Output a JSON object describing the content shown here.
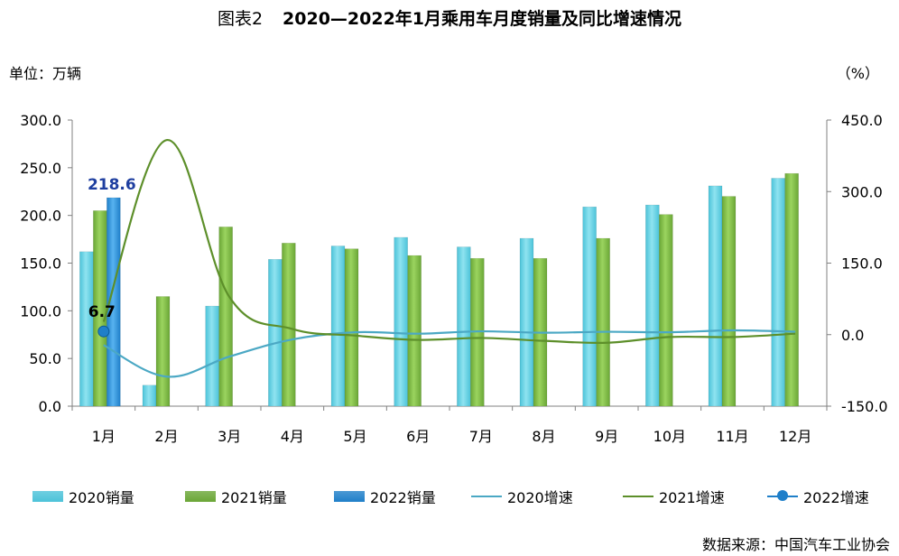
{
  "header": {
    "figure_label": "图表2",
    "title": "2020—2022年1月乘用车月度销量及同比增速情况"
  },
  "units": {
    "left": "单位：万辆",
    "right": "（%）"
  },
  "source": "数据来源：中国汽车工业协会",
  "colors": {
    "bar2020": "#4cc3d9",
    "bar2021": "#6aa636",
    "bar2022": "#1f7fc9",
    "line2020": "#4ba8c4",
    "line2021": "#5d8f2a",
    "line2022": "#1f7fc9"
  },
  "chart_data": {
    "type": "bar",
    "categories": [
      "1月",
      "2月",
      "3月",
      "4月",
      "5月",
      "6月",
      "7月",
      "8月",
      "9月",
      "10月",
      "11月",
      "12月"
    ],
    "ylim": [
      0,
      300
    ],
    "yticks": [
      "0.0",
      "50.0",
      "100.0",
      "150.0",
      "200.0",
      "250.0",
      "300.0"
    ],
    "y2lim": [
      -150,
      450
    ],
    "y2ticks": [
      "-150.0",
      "0.0",
      "150.0",
      "300.0",
      "450.0"
    ],
    "series": [
      {
        "name": "2020销量",
        "kind": "bar",
        "values": [
          162,
          22,
          105,
          154,
          168,
          177,
          167,
          176,
          209,
          211,
          231,
          239
        ]
      },
      {
        "name": "2021销量",
        "kind": "bar",
        "values": [
          205,
          115,
          188,
          171,
          165,
          158,
          155,
          155,
          176,
          201,
          220,
          244
        ]
      },
      {
        "name": "2022销量",
        "kind": "bar",
        "values": [
          218.6,
          null,
          null,
          null,
          null,
          null,
          null,
          null,
          null,
          null,
          null,
          null
        ]
      },
      {
        "name": "2020增速",
        "kind": "line",
        "axis": "right",
        "values": [
          -22,
          -88,
          -46,
          -10,
          5,
          2,
          7,
          4,
          6,
          5,
          9,
          6
        ]
      },
      {
        "name": "2021增速",
        "kind": "line",
        "axis": "right",
        "values": [
          27,
          408,
          79,
          12,
          -2,
          -11,
          -7,
          -13,
          -17,
          -5,
          -5,
          2
        ]
      },
      {
        "name": "2022增速",
        "kind": "line",
        "axis": "right",
        "values": [
          6.7,
          null,
          null,
          null,
          null,
          null,
          null,
          null,
          null,
          null,
          null,
          null
        ]
      }
    ],
    "data_labels": [
      {
        "series": "2022销量",
        "index": 0,
        "text": "218.6"
      },
      {
        "series": "2022增速",
        "index": 0,
        "text": "6.7"
      }
    ],
    "legend": "bottom",
    "grid": false
  }
}
